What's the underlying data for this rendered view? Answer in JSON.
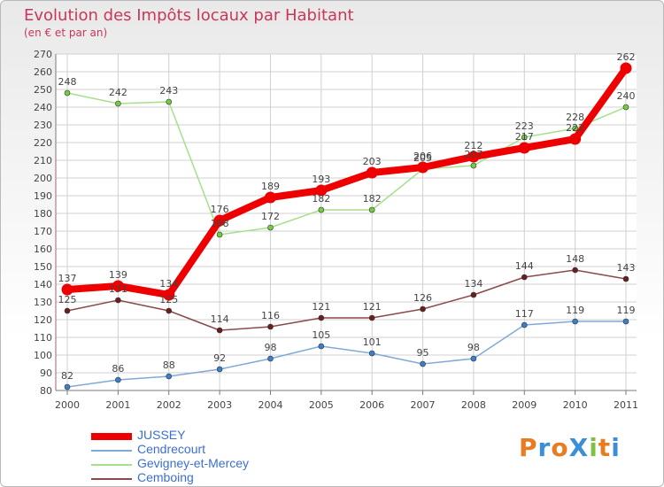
{
  "title": "Evolution des Impôts locaux par Habitant",
  "subtitle": "(en € et par an)",
  "logo_text": "ProXiti",
  "colors": {
    "title": "#c8375a",
    "grid": "#d0d0d0",
    "axis": "#7a7a7a",
    "legend_text": "#3b6fd1"
  },
  "chart_data": {
    "type": "line",
    "x": [
      "2000",
      "2001",
      "2002",
      "2003",
      "2004",
      "2005",
      "2006",
      "2007",
      "2008",
      "2009",
      "2010",
      "2011"
    ],
    "ylim": [
      80,
      270
    ],
    "ytick_step": 10,
    "grid": true,
    "legend_position": "bottom-left",
    "series": [
      {
        "name": "JUSSEY",
        "color": "#ee0000",
        "marker": "#ee0000",
        "values": [
          137,
          139,
          134,
          176,
          189,
          193,
          203,
          206,
          212,
          217,
          222,
          262
        ]
      },
      {
        "name": "Cendrecourt",
        "color": "#7fa9d8",
        "marker": "#3a7fcc",
        "values": [
          82,
          86,
          88,
          92,
          98,
          105,
          101,
          95,
          98,
          117,
          119,
          119
        ]
      },
      {
        "name": "Gevigney-et-Mercey",
        "color": "#a6e08a",
        "marker": "#6fcf3f",
        "values": [
          248,
          242,
          243,
          168,
          172,
          182,
          182,
          205,
          207,
          223,
          228,
          240
        ]
      },
      {
        "name": "Cemboing",
        "color": "#8a4a4a",
        "marker": "#6a1f1f",
        "values": [
          125,
          131,
          125,
          114,
          116,
          121,
          121,
          126,
          134,
          144,
          148,
          143
        ]
      }
    ],
    "data_labels": [
      {
        "series": 0,
        "text": [
          "137",
          "139",
          "134",
          "176",
          "189",
          "193",
          "203",
          "206",
          "212",
          "217",
          "222",
          "262"
        ]
      },
      {
        "series": 1,
        "text": [
          "82",
          "86",
          "88",
          "92",
          "98",
          "105",
          "101",
          "95",
          "98",
          "117",
          "119",
          "119"
        ]
      },
      {
        "series": 2,
        "text": [
          "248",
          "242",
          "243",
          "168",
          "172",
          "182",
          "182",
          "205",
          "207",
          "223",
          "228",
          "240"
        ]
      },
      {
        "series": 3,
        "text": [
          "125",
          "131",
          "125",
          "114",
          "116",
          "121",
          "121",
          "126",
          "134",
          "144",
          "148",
          "143"
        ]
      }
    ]
  }
}
